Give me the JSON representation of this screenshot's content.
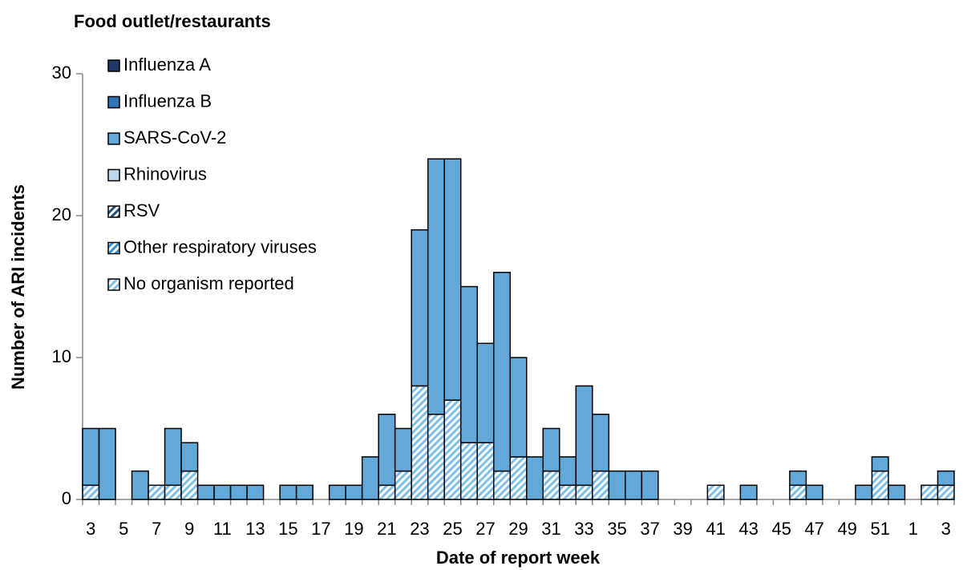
{
  "chart_data": {
    "type": "stacked_bar",
    "title": "Food outlet/restaurants",
    "x_label": "Date of report week",
    "y_label": "Number of ARI incidents",
    "categories": [
      "3",
      null,
      "5",
      null,
      "7",
      null,
      "9",
      null,
      "11",
      null,
      "13",
      null,
      "15",
      null,
      "17",
      null,
      "19",
      null,
      "21",
      null,
      "23",
      null,
      "25",
      null,
      "27",
      null,
      "29",
      null,
      "31",
      null,
      "33",
      null,
      "35",
      null,
      "37",
      null,
      "39",
      null,
      "41",
      null,
      "43",
      null,
      "45",
      null,
      "47",
      null,
      "49",
      null,
      "51",
      null,
      "1",
      null,
      "3"
    ],
    "series": [
      {
        "name": "Influenza A",
        "color": "#1f3864",
        "values": [
          0,
          0,
          0,
          0,
          0,
          0,
          0,
          0,
          0,
          0,
          0,
          0,
          0,
          0,
          0,
          0,
          0,
          0,
          0,
          0,
          0,
          0,
          0,
          0,
          0,
          0,
          0,
          0,
          0,
          0,
          0,
          0,
          0,
          0,
          0,
          0,
          0,
          0,
          0,
          0,
          0,
          0,
          0,
          0,
          0,
          0,
          0,
          0,
          0,
          0,
          0,
          0,
          0
        ]
      },
      {
        "name": "Influenza B",
        "color": "#2e75b6",
        "values": [
          0,
          0,
          0,
          0,
          0,
          0,
          0,
          0,
          0,
          0,
          0,
          0,
          0,
          0,
          0,
          0,
          0,
          0,
          0,
          0,
          0,
          0,
          0,
          0,
          0,
          0,
          0,
          0,
          0,
          0,
          0,
          0,
          0,
          0,
          0,
          0,
          0,
          0,
          0,
          0,
          0,
          0,
          0,
          0,
          0,
          0,
          0,
          0,
          0,
          0,
          0,
          0,
          0
        ]
      },
      {
        "name": "SARS-CoV-2",
        "color": "#62a8d8",
        "values": [
          4,
          5,
          0,
          2,
          0,
          4,
          2,
          1,
          1,
          1,
          1,
          0,
          1,
          1,
          0,
          1,
          1,
          3,
          5,
          3,
          11,
          18,
          17,
          11,
          7,
          14,
          7,
          3,
          3,
          2,
          7,
          4,
          2,
          2,
          2,
          0,
          0,
          0,
          0,
          0,
          1,
          0,
          0,
          1,
          1,
          0,
          0,
          1,
          1,
          1,
          0,
          0,
          1
        ]
      },
      {
        "name": "Rhinovirus",
        "color": "#bdd7ee",
        "values": [
          0,
          0,
          0,
          0,
          0,
          0,
          0,
          0,
          0,
          0,
          0,
          0,
          0,
          0,
          0,
          0,
          0,
          0,
          0,
          0,
          0,
          0,
          0,
          0,
          0,
          0,
          0,
          0,
          0,
          0,
          0,
          0,
          0,
          0,
          0,
          0,
          0,
          0,
          0,
          0,
          0,
          0,
          0,
          0,
          0,
          0,
          0,
          0,
          0,
          0,
          0,
          0,
          0
        ]
      },
      {
        "name": "RSV",
        "color": "#1f4e79",
        "pattern": "hatch",
        "values": [
          0,
          0,
          0,
          0,
          0,
          0,
          0,
          0,
          0,
          0,
          0,
          0,
          0,
          0,
          0,
          0,
          0,
          0,
          0,
          0,
          0,
          0,
          0,
          0,
          0,
          0,
          0,
          0,
          0,
          0,
          0,
          0,
          0,
          0,
          0,
          0,
          0,
          0,
          0,
          0,
          0,
          0,
          0,
          0,
          0,
          0,
          0,
          0,
          0,
          0,
          0,
          0,
          0
        ]
      },
      {
        "name": "Other respiratory viruses",
        "color": "#3a8fd0",
        "pattern": "hatch",
        "values": [
          0,
          0,
          0,
          0,
          0,
          0,
          0,
          0,
          0,
          0,
          0,
          0,
          0,
          0,
          0,
          0,
          0,
          0,
          0,
          0,
          0,
          0,
          0,
          0,
          0,
          0,
          0,
          0,
          0,
          0,
          0,
          0,
          0,
          0,
          0,
          0,
          0,
          0,
          0,
          0,
          0,
          0,
          0,
          0,
          0,
          0,
          0,
          0,
          0,
          0,
          0,
          0,
          0
        ]
      },
      {
        "name": "No organism reported",
        "color": "#7fbfe8",
        "pattern": "hatch",
        "values": [
          1,
          0,
          0,
          0,
          1,
          1,
          2,
          0,
          0,
          0,
          0,
          0,
          0,
          0,
          0,
          0,
          0,
          0,
          1,
          2,
          8,
          6,
          7,
          4,
          4,
          2,
          3,
          0,
          2,
          1,
          1,
          2,
          0,
          0,
          0,
          0,
          0,
          0,
          1,
          0,
          0,
          0,
          0,
          1,
          0,
          0,
          0,
          0,
          2,
          0,
          0,
          1,
          1
        ]
      }
    ],
    "ylim": [
      0,
      30
    ],
    "yticks": [
      0,
      10,
      20,
      30
    ],
    "grid": false,
    "legend": "top-left"
  }
}
